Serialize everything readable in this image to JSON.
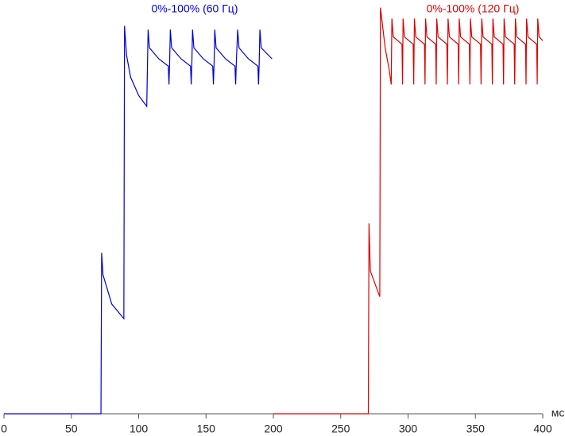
{
  "chart_data": {
    "type": "line",
    "x_label": "мс",
    "xlim": [
      0,
      400
    ],
    "xticks": [
      0,
      50,
      100,
      150,
      200,
      250,
      300,
      350,
      400
    ],
    "ylim": [
      0,
      112
    ],
    "series": [
      {
        "name": "0%-100% (60 Гц)",
        "color": "#0000dd",
        "x": [
          0,
          72,
          72.5,
          73.5,
          80,
          89,
          89.5,
          91,
          94,
          100,
          106,
          107,
          108,
          115,
          122,
          122.5,
          123,
          123.5,
          124.5,
          131.5,
          138.5,
          139,
          139.5,
          140,
          141,
          148,
          155,
          155.5,
          156,
          156.5,
          157.5,
          164.5,
          171.5,
          172,
          172.5,
          173.5,
          174.5,
          181.5,
          188.5,
          189,
          189.5,
          190,
          191,
          199
        ],
        "values": [
          0,
          0,
          44,
          38,
          30,
          26,
          106,
          98,
          92,
          87,
          84,
          105,
          100,
          97,
          95,
          90,
          96,
          105,
          100,
          97,
          95,
          90,
          96,
          105,
          100,
          97,
          95,
          90,
          96,
          105,
          100,
          97,
          95,
          90,
          96,
          105,
          100,
          97,
          95,
          90,
          96,
          105,
          100,
          97
        ]
      },
      {
        "name": "0%-100% (120 Гц)",
        "color": "#dd0000",
        "x": [
          200,
          270.5,
          271,
          272,
          279,
          279.5,
          283,
          286,
          287.5,
          288,
          289,
          295.5,
          295.9,
          296.3,
          297.3,
          303.8,
          304.2,
          304.7,
          305.7,
          312.2,
          312.6,
          313,
          314,
          320.5,
          320.9,
          321.3,
          322.3,
          328.8,
          329.2,
          329.7,
          330.7,
          337.2,
          337.6,
          338,
          339,
          345.5,
          345.9,
          346.3,
          347.3,
          353.8,
          354.2,
          354.7,
          355.7,
          362.2,
          362.6,
          363,
          364,
          370.5,
          370.9,
          371.3,
          372.3,
          378.8,
          379.2,
          379.7,
          380.7,
          387.2,
          387.6,
          388,
          389,
          395.5,
          395.9,
          396.3,
          397.3,
          400
        ],
        "values": [
          0,
          0,
          52,
          39,
          32,
          111,
          100,
          94,
          90,
          108,
          103,
          101,
          90,
          108,
          103,
          101,
          90,
          108,
          103,
          101,
          90,
          108,
          103,
          101,
          90,
          108,
          103,
          101,
          90,
          108,
          103,
          101,
          90,
          108,
          103,
          101,
          90,
          108,
          103,
          101,
          90,
          108,
          103,
          101,
          90,
          108,
          103,
          101,
          90,
          108,
          103,
          101,
          90,
          108,
          103,
          101,
          90,
          108,
          103,
          101,
          90,
          108,
          103,
          102
        ]
      }
    ]
  }
}
